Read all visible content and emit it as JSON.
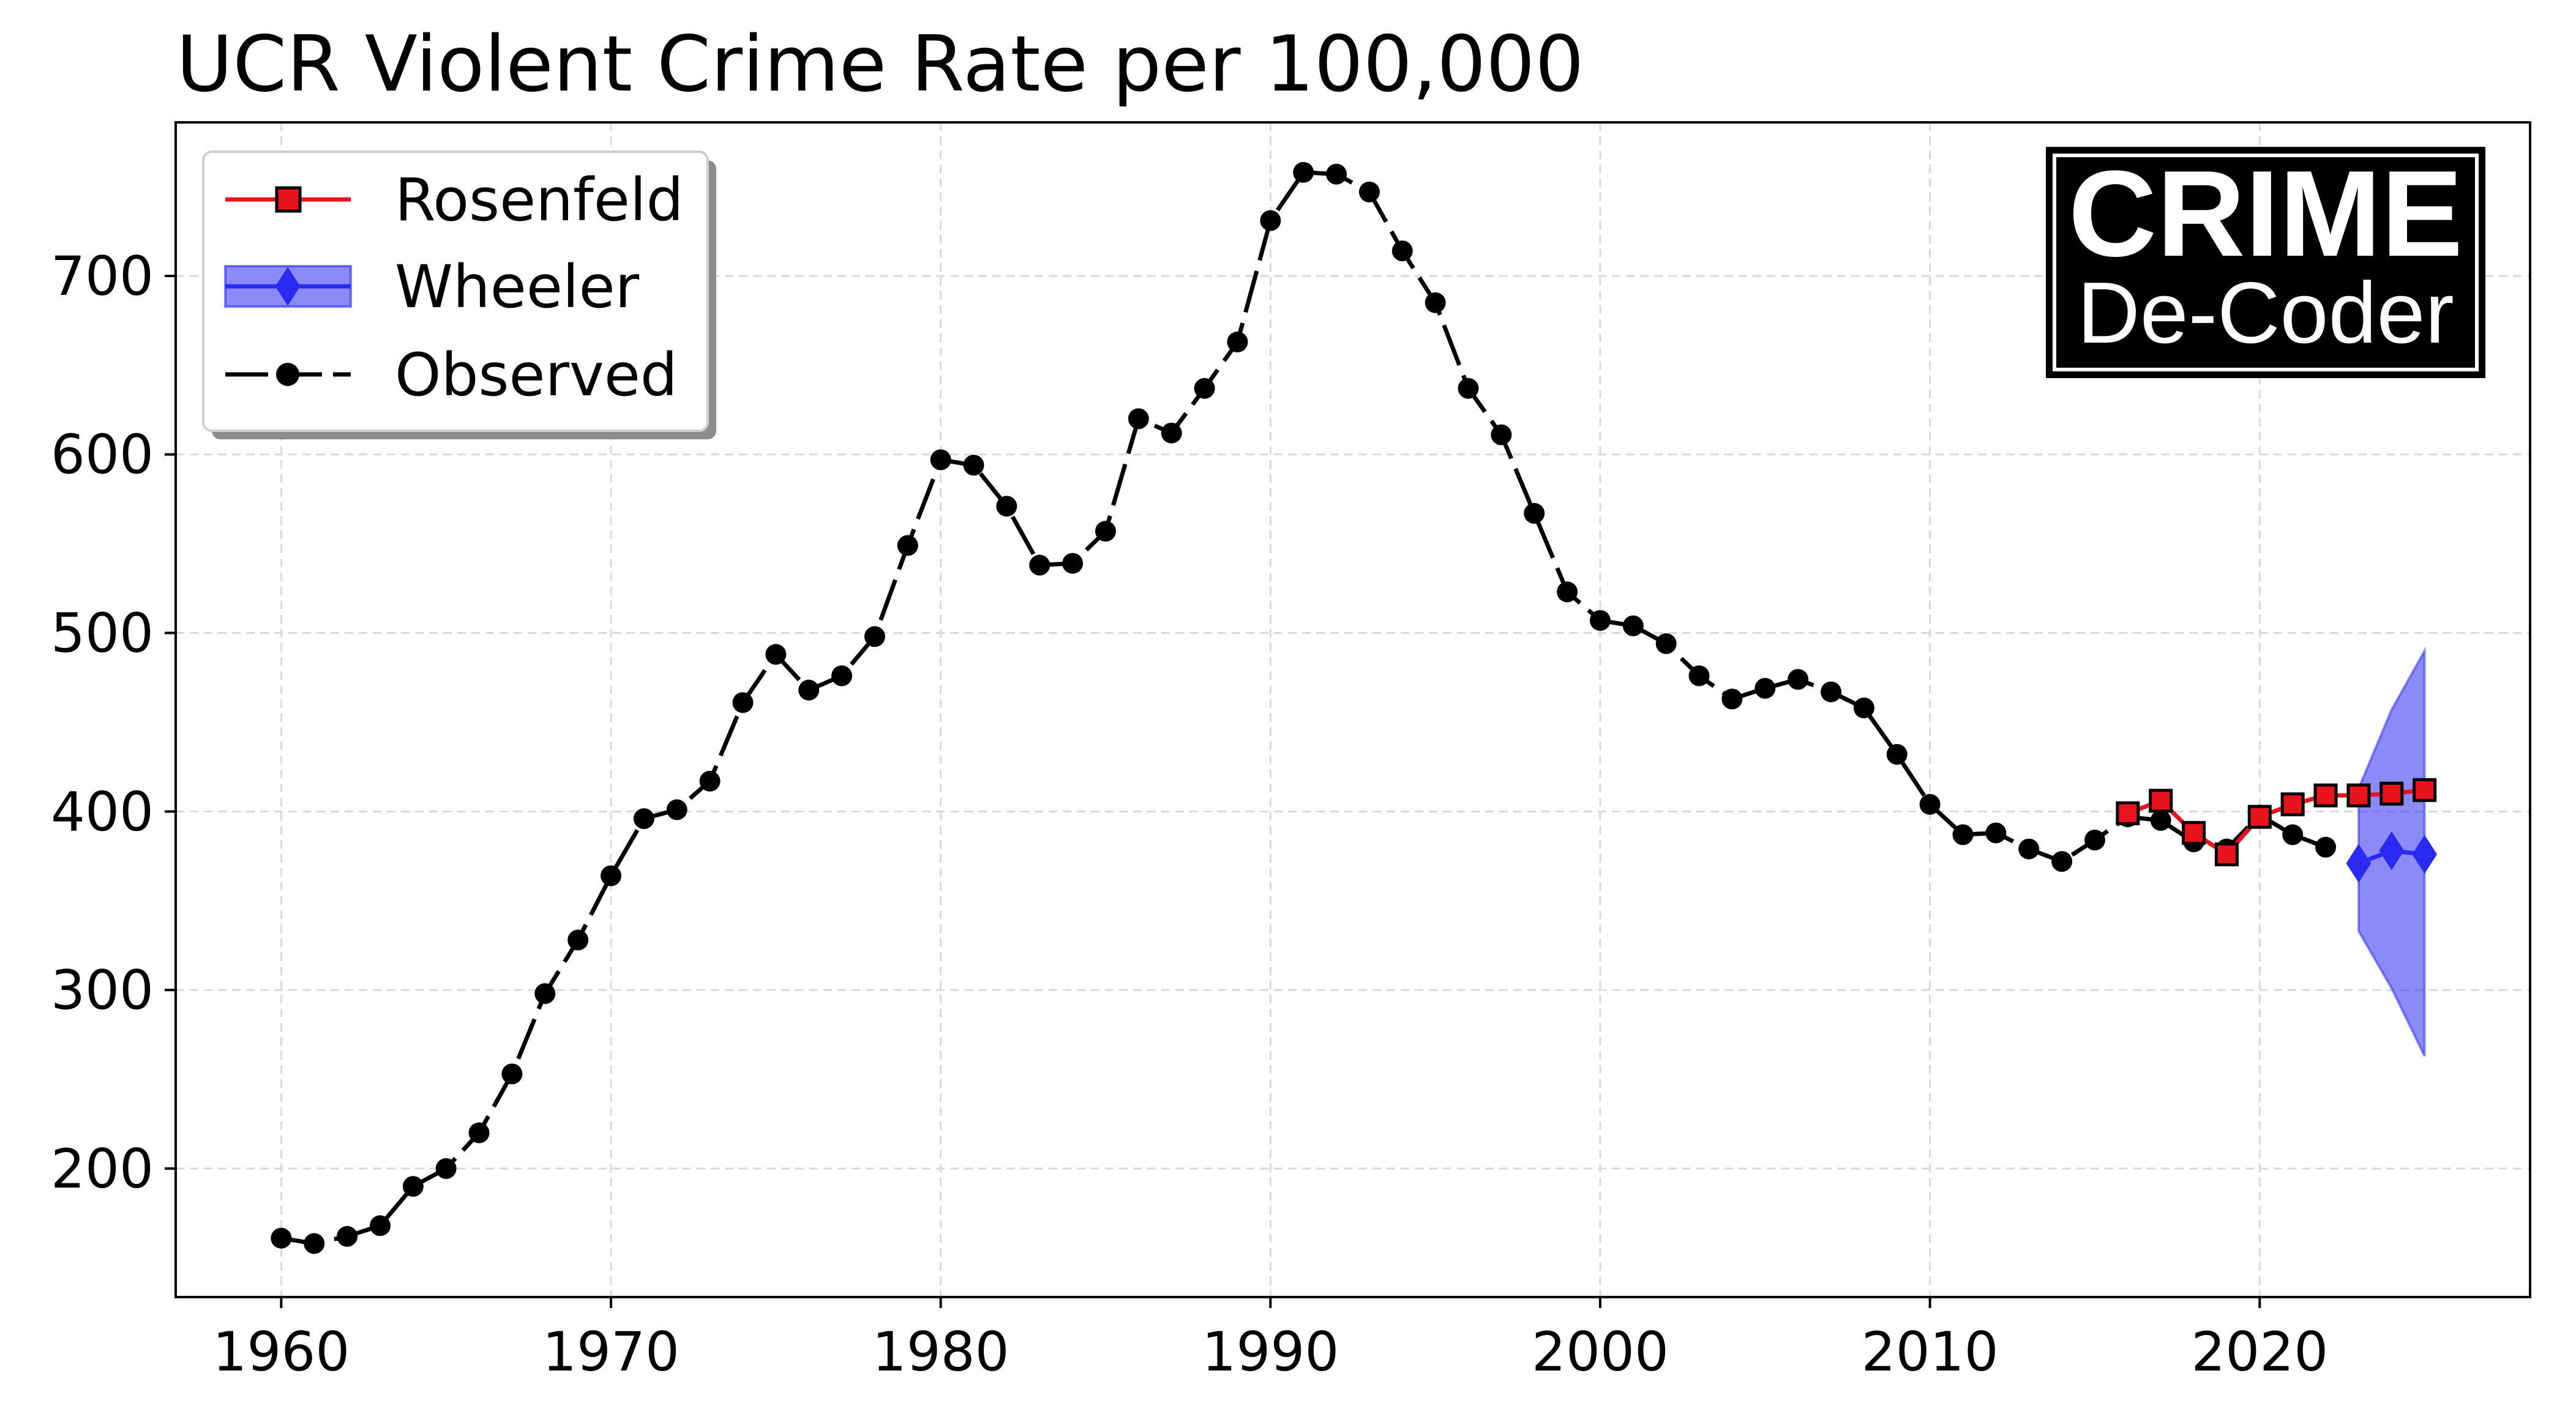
{
  "chart_data": {
    "type": "line",
    "title": "UCR Violent Crime Rate per 100,000",
    "xlabel": "",
    "ylabel": "",
    "xlim": [
      1956.8,
      2028.2
    ],
    "ylim": [
      128,
      786
    ],
    "xticks": [
      1960,
      1970,
      1980,
      1990,
      2000,
      2010,
      2020
    ],
    "yticks": [
      200,
      300,
      400,
      500,
      600,
      700
    ],
    "grid": true,
    "legend_position": "top-left",
    "series": [
      {
        "name": "Rosenfeld",
        "color": "#e8141c",
        "marker": "square",
        "x": [
          2016,
          2017,
          2018,
          2019,
          2020,
          2021,
          2022,
          2023,
          2024,
          2025
        ],
        "y": [
          399,
          406,
          388,
          376,
          397,
          404,
          409,
          409,
          410,
          412
        ]
      },
      {
        "name": "Wheeler",
        "color": "#2a2af2",
        "marker": "diamond",
        "x": [
          2023,
          2024,
          2025
        ],
        "y": [
          371,
          378,
          376
        ],
        "lower": [
          333,
          301,
          263
        ],
        "upper": [
          413,
          457,
          490
        ]
      },
      {
        "name": "Observed",
        "color": "#000000",
        "marker": "circle",
        "x": [
          1960,
          1961,
          1962,
          1963,
          1964,
          1965,
          1966,
          1967,
          1968,
          1969,
          1970,
          1971,
          1972,
          1973,
          1974,
          1975,
          1976,
          1977,
          1978,
          1979,
          1980,
          1981,
          1982,
          1983,
          1984,
          1985,
          1986,
          1987,
          1988,
          1989,
          1990,
          1991,
          1992,
          1993,
          1994,
          1995,
          1996,
          1997,
          1998,
          1999,
          2000,
          2001,
          2002,
          2003,
          2004,
          2005,
          2006,
          2007,
          2008,
          2009,
          2010,
          2011,
          2012,
          2013,
          2014,
          2015,
          2016,
          2017,
          2018,
          2019,
          2020,
          2021,
          2022
        ],
        "y": [
          161,
          158,
          162,
          168,
          190,
          200,
          220,
          253,
          298,
          328,
          364,
          396,
          401,
          417,
          461,
          488,
          468,
          476,
          498,
          549,
          597,
          594,
          571,
          538,
          539,
          557,
          620,
          612,
          637,
          663,
          731,
          758,
          757,
          747,
          714,
          685,
          637,
          611,
          567,
          523,
          507,
          504,
          494,
          476,
          463,
          469,
          474,
          467,
          458,
          432,
          404,
          387,
          388,
          379,
          372,
          384,
          397,
          395,
          383,
          379,
          398,
          387,
          380
        ]
      }
    ]
  },
  "logo": {
    "line1": "CRIME",
    "line2": "De-Coder"
  }
}
